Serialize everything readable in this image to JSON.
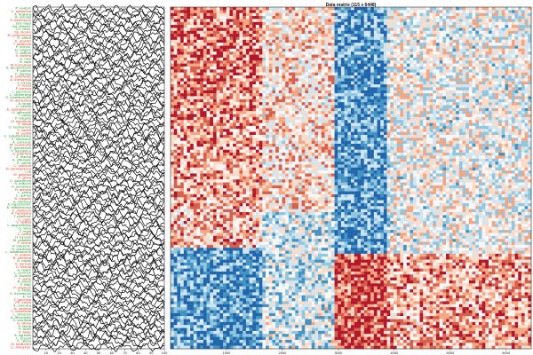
{
  "chart_data": [
    {
      "type": "line",
      "panel": "left",
      "xlim": [
        0,
        100
      ],
      "x_ticks": [
        "10",
        "20",
        "30",
        "40",
        "50",
        "60",
        "70",
        "80",
        "90",
        "100"
      ],
      "row_count": 115,
      "row_label_colors": [
        "#2e9e3a",
        "#e8442a"
      ],
      "line_color": "#111111",
      "labels": [
        "P. ovatum",
        "C. sphaerica",
        "A. thaliana",
        "B. pinnata",
        "S. tuberosum",
        "Zea mays",
        "Bd. distach.",
        "Ch. reinh.",
        "Sp. bicolor",
        "M. polymorpha",
        "O. sativa",
        "E. grandis",
        "T. aestivum",
        "P. trichoc.",
        "H. vulgare",
        "C. sativus",
        "V. vinifera",
        "G. max",
        "B. rapa",
        "M. truncatula",
        "S. lycopersicum",
        "P. patens",
        "C. papaya",
        "R. communis",
        "A. trichopoda",
        "J. curcas",
        "F. vesca",
        "P. persica",
        "L. japonicus",
        "C. clementina",
        "S. moellendorffii",
        "M. domestica",
        "A. lyrata",
        "C. rubella",
        "E. salsugineum",
        "G. raimondii",
        "T. cacao",
        "P. vulgaris",
        "M. esculenta",
        "S. italica",
        "O. lucimarinus",
        "V. carteri",
        "M. pusilla",
        "C. subellipsoidea",
        "K. flaccidum",
        "A. comosus",
        "M. acuminata",
        "E. guineensis",
        "P. dactylifera",
        "S. polyrhiza",
        "Z. marina",
        "A. officinalis",
        "D. carota",
        "C. annuum",
        "N. benthamiana",
        "I. nil",
        "M. guttatus",
        "U. gibba",
        "C. canephora",
        "S. indicum",
        "O. europaea",
        "H. annuus",
        "L. sativa",
        "C. quinoa",
        "B. vulgaris",
        "S. oleracea",
        "A. hypochondr.",
        "K. fedtschenkoi",
        "C. arietinum",
        "A. hypogaea",
        "T. pratense",
        "C. cajan",
        "V. radiata",
        "L. angustifolius",
        "Q. robur",
        "J. regia",
        "C. sativa",
        "H. lupulus",
        "M. notabilis",
        "P. mume",
        "P. bretschn.",
        "R. chinensis",
        "L. usitatissimum",
        "P. axillaris",
        "B. oleracea",
        "B. napus",
        "S. parvula",
        "C. hirsuta",
        "A. halleri",
        "L. perenne",
        "A. tauschii",
        "T. urartu",
        "B. stacei",
        "P. hallii",
        "P. virgatum",
        "S. viridis",
        "O. thomaeum",
        "E. tef",
        "Z. japonica",
        "Ph. edulis",
        "A. coerulea",
        "N. nucifera",
        "C. kanehirae",
        "L. chinense",
        "A. filiculoides",
        "S. cucullata",
        "G. biloba",
        "P. taeda",
        "P. abies",
        "S. fallax",
        "A. agrestis",
        "C. braunii",
        "K. nitens",
        "M. endlicheri",
        "C. atmophyt."
      ]
    },
    {
      "type": "heatmap",
      "panel": "right",
      "title": "Data matrix (115 x 6448)",
      "rows": 115,
      "columns": 6448,
      "x_ticks": [
        "1000",
        "2000",
        "3000",
        "4000",
        "5000",
        "6000"
      ],
      "x_tick_values": [
        1000,
        2000,
        3000,
        4000,
        5000,
        6000
      ],
      "colormap": [
        "#2166ac",
        "#4393c3",
        "#92c5de",
        "#d1e5f0",
        "#f7f7f7",
        "#fddbc7",
        "#f4a582",
        "#d6604d",
        "#b2182b"
      ],
      "value_range": [
        -1,
        1
      ]
    }
  ]
}
